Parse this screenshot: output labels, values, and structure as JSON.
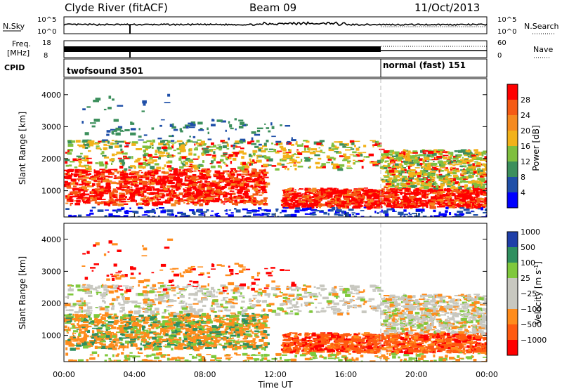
{
  "header": {
    "station": "Clyde River (fitACF)",
    "beam": "Beam 09",
    "date": "11/Oct/2013"
  },
  "params": {
    "nsky_label": "N.Sky",
    "nsky_ticks": [
      "10^5",
      "10^0"
    ],
    "nsearch_label": "N.Search",
    "nsearch_ticks": [
      "10^5",
      "10^0"
    ],
    "freq_label_1": "Freq.",
    "freq_label_2": "[MHz]",
    "freq_ticks": [
      "18",
      "8"
    ],
    "nave_label": "Nave",
    "nave_ticks": [
      "60",
      "0"
    ],
    "cpid_label": "CPID",
    "cpid_modes": [
      "twofsound 3501",
      "normal (fast) 151"
    ],
    "mode_change_hour": 18
  },
  "colors": {
    "power": [
      "#0000ff",
      "#1f4fa8",
      "#3c8f5c",
      "#7fbf3f",
      "#f2b21a",
      "#f58a1f",
      "#f55a14",
      "#ff0000"
    ],
    "velocity": [
      "#ff0000",
      "#ff5a10",
      "#ff8c1c",
      "#c8c8c0",
      "#c8c8c0",
      "#7fc83c",
      "#2f8f5f",
      "#1f3fa8"
    ]
  },
  "chart_data": [
    {
      "type": "heatmap",
      "panel": "power",
      "xlabel": "",
      "ylabel": "Slant Range [km]",
      "xlim": [
        0,
        24
      ],
      "ylim": [
        180,
        4500
      ],
      "yticks": [
        1000,
        2000,
        3000,
        4000
      ],
      "colorbar": {
        "label": "Power [dB]",
        "range": [
          0,
          32
        ],
        "ticks": [
          "4",
          "8",
          "12",
          "16",
          "20",
          "24",
          "28"
        ]
      }
    },
    {
      "type": "heatmap",
      "panel": "velocity",
      "xlabel": "Time UT",
      "ylabel": "Slant Range [km]",
      "xlim": [
        0,
        24
      ],
      "ylim": [
        180,
        4500
      ],
      "yticks": [
        1000,
        2000,
        3000,
        4000
      ],
      "xticks": [
        "00:00",
        "04:00",
        "08:00",
        "12:00",
        "16:00",
        "20:00",
        "00:00"
      ],
      "colorbar": {
        "label": "Velocity [m s^-1]",
        "ticks": [
          "1000",
          "500",
          "100",
          "25",
          "−25",
          "−100",
          "−500",
          "−1000"
        ]
      }
    }
  ]
}
